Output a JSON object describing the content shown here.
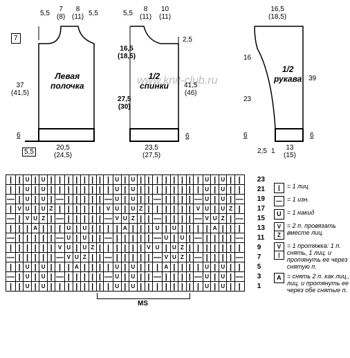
{
  "watermark": "www.knit-club.ru",
  "pieces": {
    "left": {
      "label": "Левая\nполочка"
    },
    "back": {
      "label": "1/2\nспинки"
    },
    "sleeve": {
      "label": "1/2\nрукава"
    }
  },
  "dims": {
    "l_top_a": "5,5",
    "l_top_b": "7\n(8)",
    "l_top_c": "8\n(11)",
    "l_top_d": "5,5",
    "l_side_7": "7",
    "l_side_37": "37\n(41,5)",
    "l_side_6": "6",
    "l_bot_55": "5,5",
    "l_bot_w": "20,5\n(24,5)",
    "b_top_a": "5,5",
    "b_top_b": "8\n(11)",
    "b_top_c": "10\n(11)",
    "b_ctr_16": "16,5\n(18,5)",
    "b_ctr_27": "27,5\n(30)",
    "b_top_25": "2,5",
    "b_side_41": "41,5\n(46)",
    "b_side_6": "6",
    "b_bot_w": "23,5\n(27,5)",
    "s_top_w": "16,5\n(18,5)",
    "s_side_16": "16",
    "s_side_23": "23",
    "s_side_39": "39",
    "s_side_6a": "6",
    "s_side_6b": "6",
    "s_bot_25": "2,5",
    "s_bot_1": "1",
    "s_bot_13": "13\n(15)"
  },
  "legend": {
    "l1": "= 1 лиц.",
    "l2": "= 1 изн.",
    "l3": "= 1 накид",
    "l4": "= 2 п. провязать вместе лиц.",
    "l5": "= 1 протяжка: 1 п. снять, 1 лиц. и протянуть ее через снятую п.",
    "l6": "= снять 2 п. как лиц., 1 лиц. и протянуть ее через обе снятые п."
  },
  "ms": "MS",
  "rownums": [
    "23",
    "21",
    "19",
    "17",
    "15",
    "13",
    "11",
    "9",
    "7",
    "5",
    "3",
    "1"
  ],
  "chart": {
    "rows": [
      [
        "|",
        "|",
        "U",
        "|",
        "U",
        "|",
        "|",
        "|",
        "|",
        "|",
        "|",
        "|",
        "|",
        "U",
        "|",
        "U",
        "|",
        "|",
        "|",
        "|",
        "|",
        "|",
        "|",
        "|",
        "U",
        "|",
        "U",
        "|",
        "|"
      ],
      [
        "|",
        "|",
        "U",
        "|",
        "U",
        "|",
        "|",
        "|",
        "|",
        "|",
        "|",
        "|",
        "|",
        "U",
        "|",
        "U",
        "|",
        "|",
        "|",
        "|",
        "|",
        "|",
        "|",
        "|",
        "U",
        "|",
        "U",
        "|",
        "|"
      ],
      [
        "-",
        "|",
        "U",
        "|",
        "U",
        "|",
        "-",
        "|",
        "|",
        "|",
        "|",
        "|",
        "-",
        "U",
        "|",
        "U",
        "|",
        "|",
        "-",
        "|",
        "|",
        "|",
        "|",
        "-",
        "U",
        "|",
        "U",
        "|",
        "-"
      ],
      [
        "|",
        "V",
        "U",
        "|",
        "U",
        "Z",
        "|",
        "|",
        "|",
        "|",
        "|",
        "|",
        "V",
        "U",
        "|",
        "U",
        "Z",
        "|",
        "|",
        "|",
        "|",
        "|",
        "|",
        "V",
        "U",
        "|",
        "U",
        "Z",
        "|"
      ],
      [
        "-",
        "|",
        "V",
        "U",
        "Z",
        "|",
        "-",
        "|",
        "|",
        "|",
        "|",
        "|",
        "-",
        "V",
        "U",
        "Z",
        "|",
        "|",
        "-",
        "|",
        "|",
        "|",
        "|",
        "-",
        "V",
        "U",
        "Z",
        "|",
        "-"
      ],
      [
        "|",
        "|",
        "|",
        "A",
        "|",
        "|",
        "|",
        "U",
        "|",
        "U",
        "|",
        "|",
        "|",
        "|",
        "A",
        "|",
        "|",
        "|",
        "U",
        "|",
        "U",
        "|",
        "|",
        "|",
        "|",
        "A",
        "|",
        "|",
        "|"
      ],
      [
        "-",
        "|",
        "|",
        "|",
        "|",
        "|",
        "-",
        "U",
        "|",
        "U",
        "|",
        "|",
        "-",
        "|",
        "|",
        "|",
        "|",
        "|",
        "-",
        "U",
        "|",
        "U",
        "|",
        "-",
        "|",
        "|",
        "|",
        "|",
        "-"
      ],
      [
        "|",
        "|",
        "|",
        "|",
        "|",
        "|",
        "V",
        "U",
        "|",
        "U",
        "Z",
        "|",
        "|",
        "|",
        "|",
        "|",
        "|",
        "V",
        "U",
        "|",
        "U",
        "Z",
        "|",
        "|",
        "|",
        "|",
        "|",
        "|",
        "|"
      ],
      [
        "-",
        "|",
        "|",
        "|",
        "|",
        "|",
        "-",
        "V",
        "U",
        "Z",
        "|",
        "|",
        "-",
        "|",
        "|",
        "|",
        "|",
        "|",
        "-",
        "V",
        "U",
        "Z",
        "|",
        "-",
        "|",
        "|",
        "|",
        "|",
        "-"
      ],
      [
        "|",
        "|",
        "U",
        "|",
        "U",
        "|",
        "|",
        "|",
        "A",
        "|",
        "|",
        "|",
        "|",
        "U",
        "|",
        "U",
        "|",
        "|",
        "|",
        "A",
        "|",
        "|",
        "|",
        "|",
        "U",
        "|",
        "U",
        "|",
        "|"
      ],
      [
        "-",
        "|",
        "U",
        "|",
        "U",
        "|",
        "-",
        "|",
        "|",
        "|",
        "|",
        "|",
        "-",
        "U",
        "|",
        "U",
        "|",
        "|",
        "-",
        "|",
        "|",
        "|",
        "|",
        "-",
        "U",
        "|",
        "U",
        "|",
        "-"
      ],
      [
        "|",
        "|",
        "U",
        "|",
        "U",
        "|",
        "|",
        "|",
        "|",
        "|",
        "|",
        "|",
        "|",
        "U",
        "|",
        "U",
        "|",
        "|",
        "|",
        "|",
        "|",
        "|",
        "|",
        "|",
        "U",
        "|",
        "U",
        "|",
        "|"
      ]
    ]
  }
}
